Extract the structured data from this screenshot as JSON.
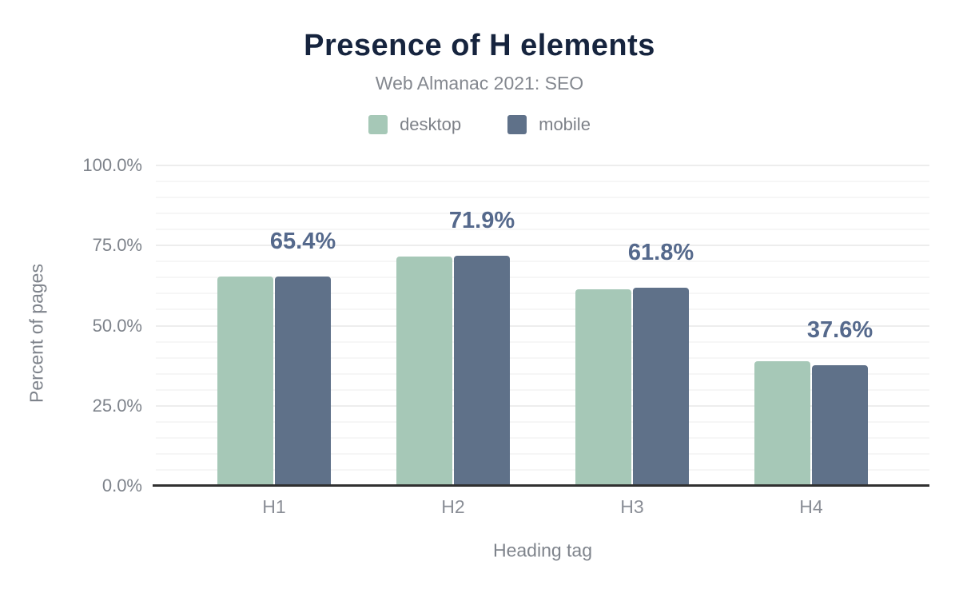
{
  "figure": {
    "title": "Presence of H elements",
    "subtitle": "Web Almanac 2021: SEO"
  },
  "chart_data": {
    "type": "bar",
    "title": "Presence of H elements",
    "subtitle": "Web Almanac 2021: SEO",
    "categories": [
      "H1",
      "H2",
      "H3",
      "H4"
    ],
    "series": [
      {
        "name": "desktop",
        "color": "#a6c8b7",
        "values": [
          65.3,
          71.5,
          61.4,
          38.9
        ]
      },
      {
        "name": "mobile",
        "color": "#5f7189",
        "values": [
          65.4,
          71.9,
          61.8,
          37.6
        ]
      }
    ],
    "data_labels": [
      "65.4%",
      "71.9%",
      "61.8%",
      "37.6%"
    ],
    "data_labels_series": "mobile",
    "data_label_color": "#55698c",
    "xlabel": "Heading tag",
    "ylabel": "Percent of pages",
    "ylim": [
      0,
      100
    ],
    "yticks": [
      {
        "value": 0,
        "label": "0.0%"
      },
      {
        "value": 25,
        "label": "25.0%"
      },
      {
        "value": 50,
        "label": "50.0%"
      },
      {
        "value": 75,
        "label": "75.0%"
      },
      {
        "value": 100,
        "label": "100.0%"
      }
    ],
    "grid": {
      "minor_step": 5,
      "major_step": 25,
      "minor_color": "#f6f6f6",
      "major_color": "#ededed"
    },
    "legend_position": "top",
    "colors": {
      "title": "#16243e",
      "subtitle": "#84888f",
      "axis_text": "#7e838b",
      "baseline": "#303030"
    }
  }
}
